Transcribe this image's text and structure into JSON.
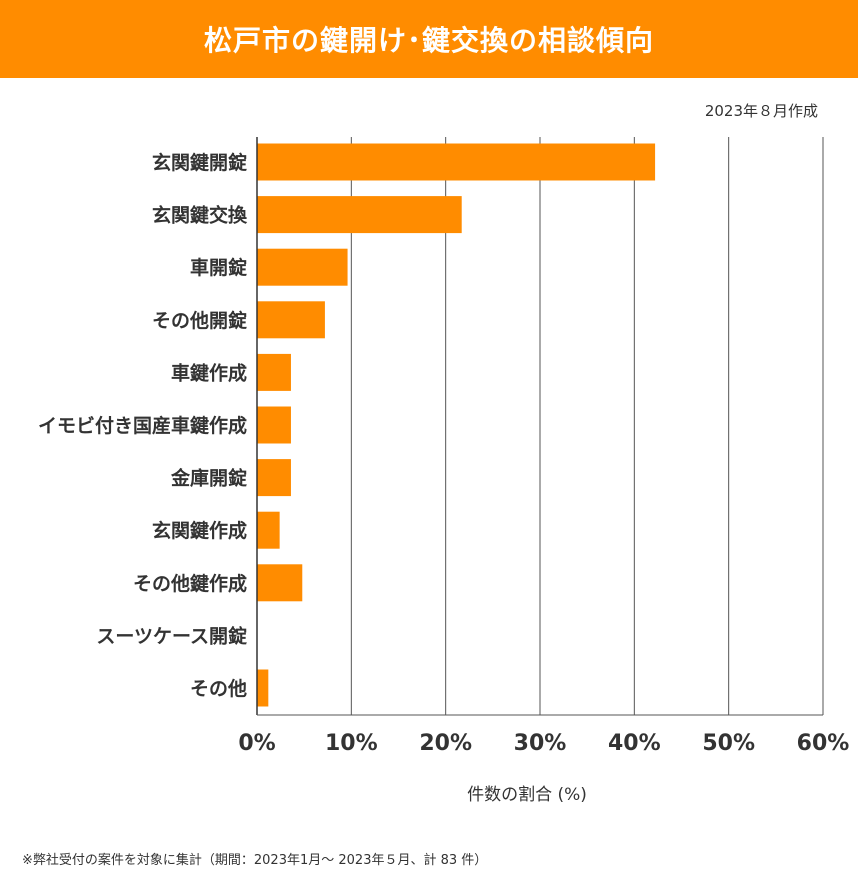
{
  "header": {
    "title": "松戸市の鍵開け･鍵交換の相談傾向"
  },
  "date_label": "2023年８月作成",
  "footnote": "※弊社受付の案件を対象に集計（期間：2023年1月～ 2023年５月、計 83 件）",
  "colors": {
    "bar": "#ff8c00",
    "header": "#ff8c00",
    "grid": "#555555"
  },
  "chart_data": {
    "type": "bar",
    "orientation": "horizontal",
    "categories": [
      "玄関鍵開錠",
      "玄関鍵交換",
      "車開錠",
      "その他開錠",
      "車鍵作成",
      "イモビ付き国産車鍵作成",
      "金庫開錠",
      "玄関鍵作成",
      "その他鍵作成",
      "スーツケース開錠",
      "その他"
    ],
    "values": [
      42.2,
      21.7,
      9.6,
      7.2,
      3.6,
      3.6,
      3.6,
      2.4,
      4.8,
      0,
      1.2
    ],
    "xlabel": "件数の割合 (%)",
    "xlim": [
      0,
      60
    ],
    "xticks": [
      "0%",
      "10%",
      "20%",
      "30%",
      "40%",
      "50%",
      "60%"
    ],
    "grid": true
  }
}
